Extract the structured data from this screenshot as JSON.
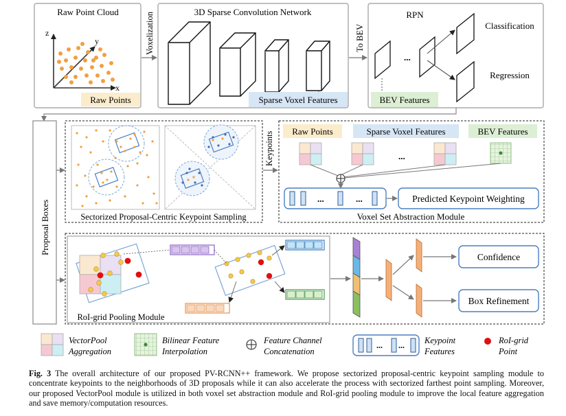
{
  "top": {
    "raw_point_cloud": "Raw Point Cloud",
    "axis_x": "x",
    "axis_y": "y",
    "axis_z": "z",
    "raw_points_tag": "Raw Points",
    "voxelization": "Voxelization",
    "sparse_conv_title": "3D Sparse Convolution Network",
    "sparse_voxel_features": "Sparse Voxel Features",
    "to_bev": "To BEV",
    "rpn_title": "RPN",
    "ellipsis": "...",
    "classification": "Classification",
    "regression": "Regression",
    "bev_features": "BEV Features"
  },
  "middle": {
    "proposal_boxes": "Proposal Boxes",
    "sampling_title": "Sectorized Proposal-Centric Keypoint Sampling",
    "keypoints": "Keypoints",
    "raw_points": "Raw Points",
    "sparse_voxel_features": "Sparse Voxel Features",
    "bev_features": "BEV Features",
    "ellipsis": "...",
    "predicted_weighting": "Predicted Keypoint Weighting",
    "vsa_module": "Voxel Set Abstraction Module"
  },
  "bottom": {
    "roi_pooling": "RoI-grid Pooling Module",
    "confidence": "Confidence",
    "box_refinement": "Box Refinement"
  },
  "legend": {
    "vectorpool_1": "VectorPool",
    "vectorpool_2": "Aggregation",
    "bilinear_1": "Bilinear Feature",
    "bilinear_2": "Interpolation",
    "concat_1": "Feature  Channel",
    "concat_2": "Concatenation",
    "keypoint_1": "Keypoint",
    "keypoint_2": "Features",
    "roigrid_1": "RoI-grid",
    "roigrid_2": "Point",
    "ellipsis": "..."
  },
  "caption": {
    "label": "Fig. 3",
    "text": "The overall architecture of our proposed PV-RCNN++ framework. We propose sectorized proposal-centric keypoint sampling module to concentrate keypoints to the neighborhoods of 3D proposals while it can also accelerate the process with sectorized farthest point sampling. Moreover, our proposed VectorPool module is utilized in both voxel set abstraction module and RoI-grid pooling module to improve the local feature aggregation and save memory/computation resources."
  },
  "colors": {
    "orange_point": "#f0a040",
    "yellow_point": "#f5c94a",
    "red_point": "#e01010",
    "blue_point": "#3a6fb5",
    "tag_yellow": "#fbeccc",
    "tag_blue": "#d6e6f5",
    "tag_green": "#dcefd4",
    "frame_blue": "#4a7fc0",
    "feat_purple": "#8a5fc0",
    "feat_teal": "#4ab0c0",
    "feat_green": "#6ab04a",
    "feat_orange": "#e8904a"
  }
}
